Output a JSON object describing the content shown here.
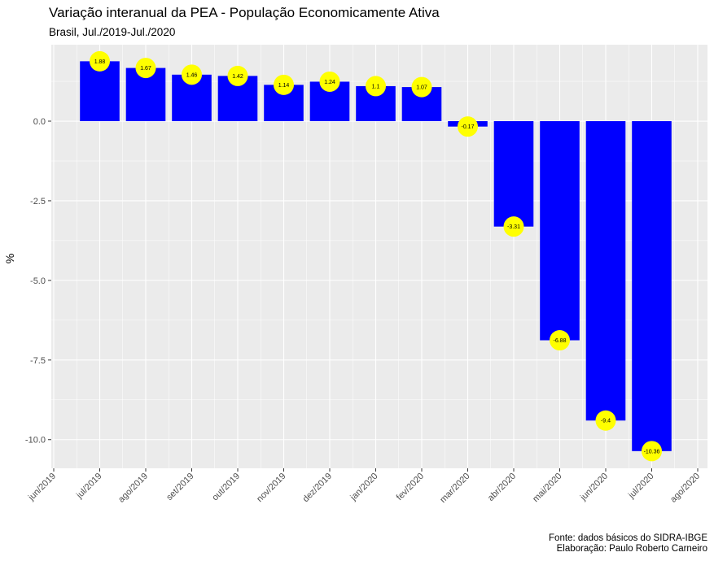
{
  "chart_data": {
    "type": "bar",
    "title": "Variação interanual da PEA - População Economicamente Ativa",
    "subtitle": "Brasil, Jul./2019-Jul./2020",
    "ylabel": "%",
    "xlabel": "",
    "ylim": [
      -10.9,
      2.4
    ],
    "yticks": [
      0.0,
      -2.5,
      -5.0,
      -7.5,
      -10.0
    ],
    "ytick_labels": [
      "0.0",
      "-2.5",
      "-5.0",
      "-7.5",
      "-10.0"
    ],
    "x_ticks": [
      "jun/2019",
      "jul/2019",
      "ago/2019",
      "set/2019",
      "out/2019",
      "nov/2019",
      "dez/2019",
      "jan/2020",
      "fev/2020",
      "mar/2020",
      "abr/2020",
      "mai/2020",
      "jun/2020",
      "jul/2020",
      "ago/2020"
    ],
    "categories": [
      "jul/2019",
      "ago/2019",
      "set/2019",
      "out/2019",
      "nov/2019",
      "dez/2019",
      "jan/2020",
      "fev/2020",
      "mar/2020",
      "abr/2020",
      "mai/2020",
      "jun/2020",
      "jul/2020"
    ],
    "values": [
      1.88,
      1.67,
      1.46,
      1.42,
      1.14,
      1.24,
      1.1,
      1.07,
      -0.17,
      -3.31,
      -6.88,
      -9.4,
      -10.36
    ],
    "value_labels": [
      "1.88",
      "1.67",
      "1.46",
      "1.42",
      "1.14",
      "1.24",
      "1.1",
      "1.07",
      "-0.17",
      "-3.31",
      "-6.88",
      "-9.4",
      "-10.36"
    ],
    "grid": true,
    "colors": {
      "bar": "#0000ff",
      "label_circle": "#ffff00",
      "panel": "#ebebeb",
      "grid": "#ffffff"
    }
  },
  "caption": {
    "line1": "Fonte: dados básicos do SIDRA-IBGE",
    "line2": "Elaboração: Paulo Roberto Carneiro"
  }
}
